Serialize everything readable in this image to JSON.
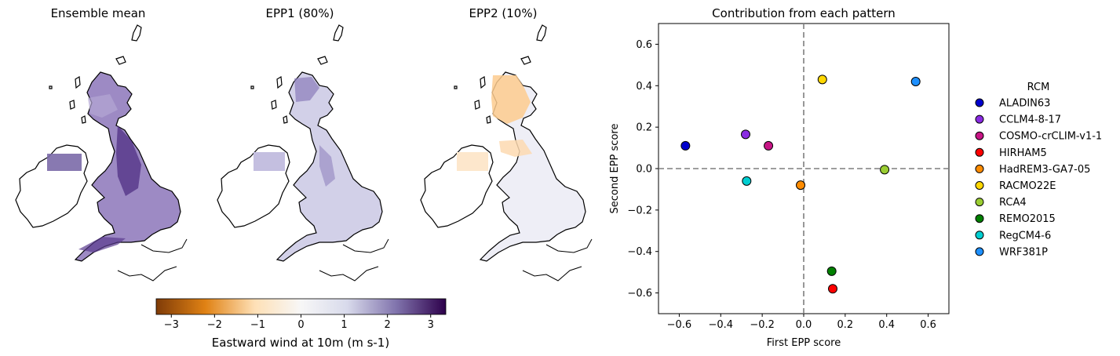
{
  "maps": [
    {
      "title": "Ensemble mean"
    },
    {
      "title": "EPP1 (80%)"
    },
    {
      "title": "EPP2 (10%)"
    }
  ],
  "colorbar": {
    "label": "Eastward wind at 10m (m s-1)",
    "ticks": [
      "−3",
      "−2",
      "−1",
      "0",
      "1",
      "2",
      "3"
    ],
    "tick_values": [
      -3,
      -2,
      -1,
      0,
      1,
      2,
      3
    ],
    "range": [
      -3.35,
      3.35
    ],
    "colormap": "PuOr",
    "colors": [
      "#7f3b08",
      "#e08214",
      "#fee0b6",
      "#f7f7f7",
      "#d8daeb",
      "#8073ac",
      "#2d004b"
    ]
  },
  "chart_data": {
    "type": "scatter",
    "title": "Contribution from each pattern",
    "xlabel": "First EPP score",
    "ylabel": "Second EPP score",
    "xlim": [
      -0.7,
      0.7
    ],
    "ylim": [
      -0.7,
      0.7
    ],
    "xticks": [
      -0.6,
      -0.4,
      -0.2,
      0.0,
      0.2,
      0.4,
      0.6
    ],
    "yticks": [
      -0.6,
      -0.4,
      -0.2,
      0.0,
      0.2,
      0.4,
      0.6
    ],
    "xtick_labels": [
      "−0.6",
      "−0.4",
      "−0.2",
      "0.0",
      "0.2",
      "0.4",
      "0.6"
    ],
    "ytick_labels": [
      "−0.6",
      "−0.4",
      "−0.2",
      "0.0",
      "0.2",
      "0.4",
      "0.6"
    ],
    "reference_lines": {
      "x": 0.0,
      "y": 0.0,
      "style": "dashed"
    },
    "legend": {
      "title": "RCM",
      "placement": "right, outside"
    },
    "points": [
      {
        "name": "ALADIN63",
        "x": -0.57,
        "y": 0.11,
        "color": "#0000cd"
      },
      {
        "name": "CCLM4-8-17",
        "x": -0.28,
        "y": 0.165,
        "color": "#8a2be2"
      },
      {
        "name": "COSMO-crCLIM-v1-1",
        "x": -0.17,
        "y": 0.11,
        "color": "#c71585"
      },
      {
        "name": "HIRHAM5",
        "x": 0.14,
        "y": -0.58,
        "color": "#ff0000"
      },
      {
        "name": "HadREM3-GA7-05",
        "x": -0.015,
        "y": -0.08,
        "color": "#ff8c00"
      },
      {
        "name": "RACMO22E",
        "x": 0.09,
        "y": 0.43,
        "color": "#ffd700"
      },
      {
        "name": "RCA4",
        "x": 0.39,
        "y": -0.005,
        "color": "#9acd32"
      },
      {
        "name": "REMO2015",
        "x": 0.135,
        "y": -0.495,
        "color": "#008000"
      },
      {
        "name": "RegCM4-6",
        "x": -0.275,
        "y": -0.06,
        "color": "#00ced1"
      },
      {
        "name": "WRF381P",
        "x": 0.54,
        "y": 0.42,
        "color": "#1e90ff"
      }
    ]
  }
}
